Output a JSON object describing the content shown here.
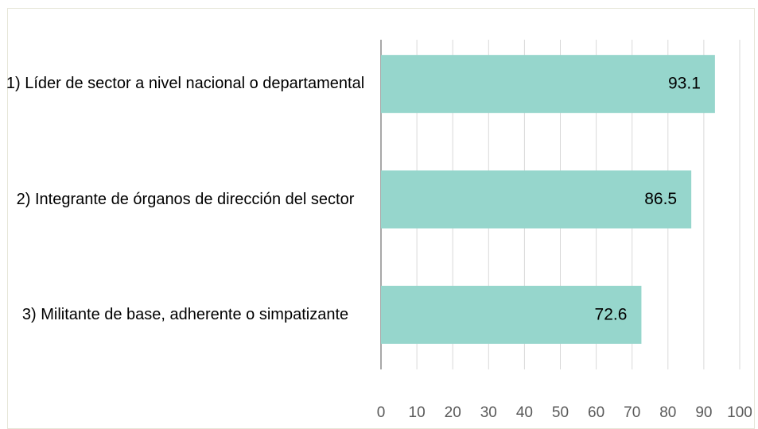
{
  "chart_data": {
    "type": "bar",
    "orientation": "horizontal",
    "categories": [
      "1) Líder de sector a nivel nacional o departamental",
      "2) Integrante de órganos de dirección del sector",
      "3) Militante de base, adherente o simpatizante"
    ],
    "values": [
      93.1,
      86.5,
      72.6
    ],
    "color": "#96d6cc",
    "xlim": [
      0,
      100
    ],
    "xticks": [
      0,
      10,
      20,
      30,
      40,
      50,
      60,
      70,
      80,
      90,
      100
    ],
    "grid": true
  }
}
